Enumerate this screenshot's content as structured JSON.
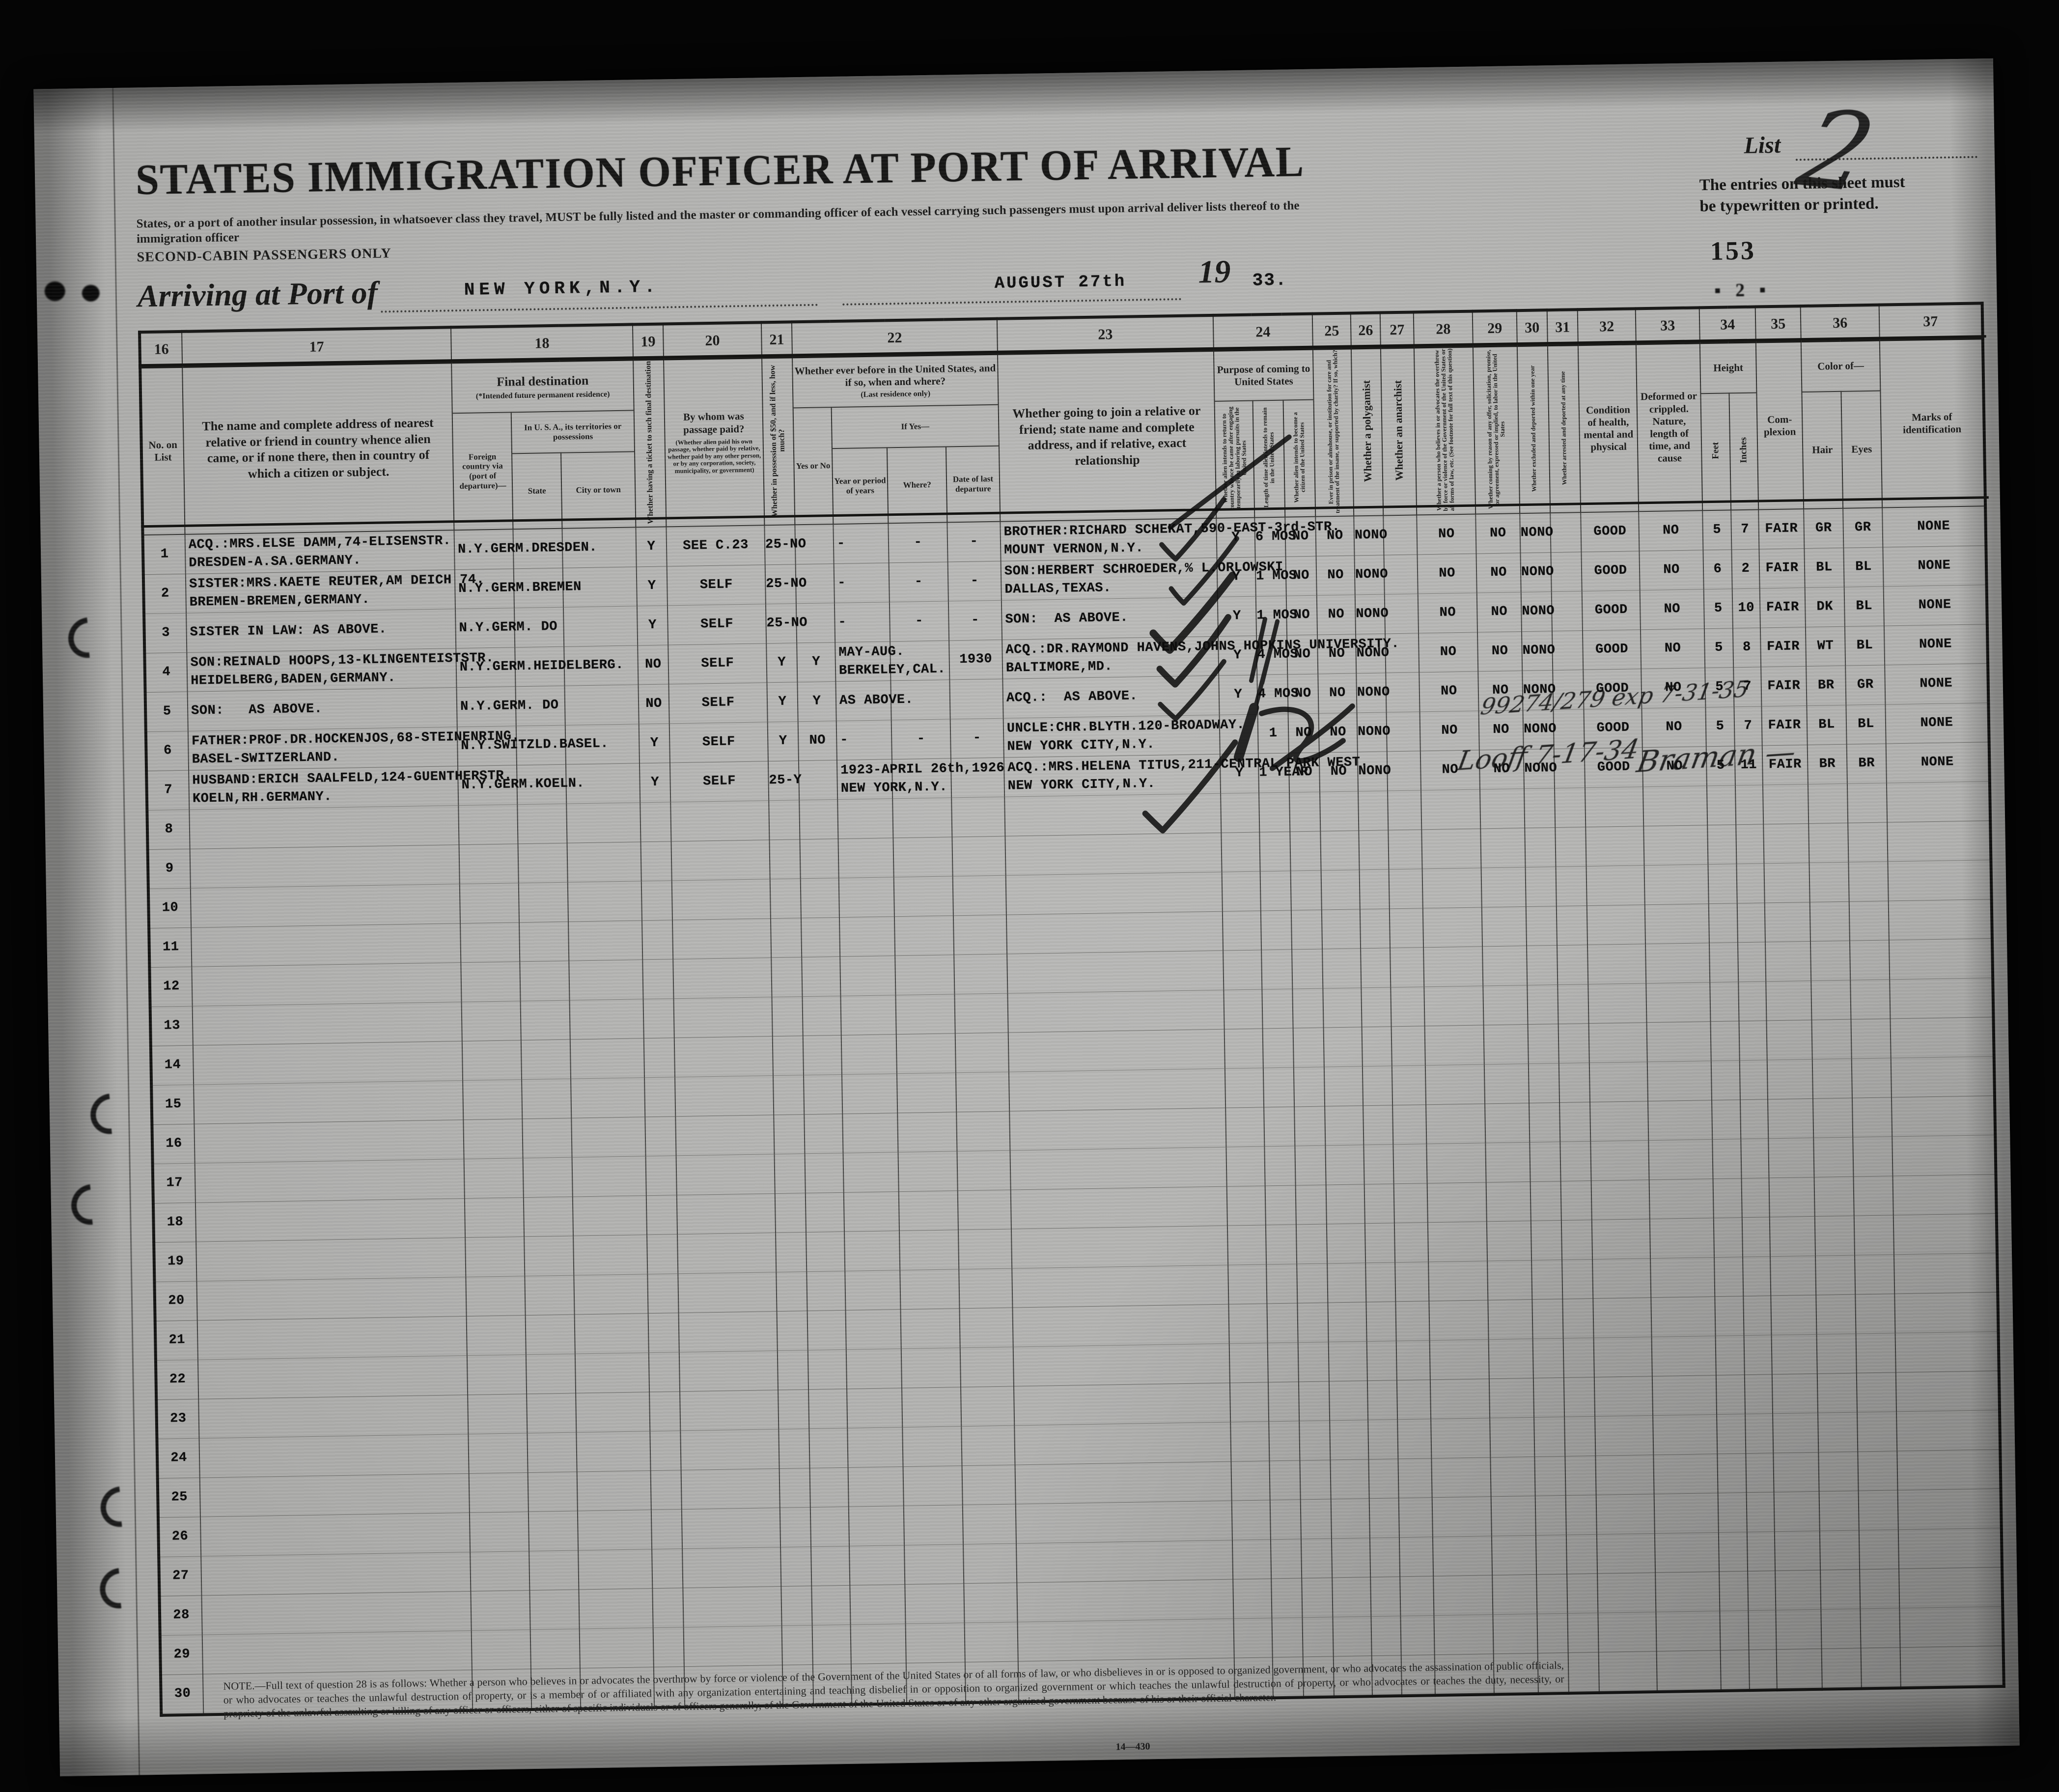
{
  "page": {
    "list_label": "List",
    "list_number_handwritten": "2",
    "typed_note": "The entries on this sheet must be typewritten or printed.",
    "page_number": "153",
    "stamp_marks": "▪ 2 ▪"
  },
  "header": {
    "title": "STATES IMMIGRATION OFFICER AT PORT OF ARRIVAL",
    "subtitle": "States, or a port of another insular possession, in whatsoever class they travel, MUST be fully listed and the master or commanding officer of each vessel carrying such passengers must upon arrival deliver lists thereof to the immigration officer",
    "second_cabin": "SECOND-CABIN PASSENGERS ONLY",
    "arriving_label": "Arriving at Port of",
    "port": "NEW YORK,N.Y.",
    "date": "AUGUST 27th",
    "year_printed": "19",
    "year_typed": "33."
  },
  "table": {
    "column_numbers": [
      "16",
      "17",
      "18",
      "19",
      "20",
      "21",
      "22",
      "23",
      "24",
      "25",
      "26",
      "27",
      "28",
      "29",
      "30",
      "31",
      "32",
      "33",
      "34",
      "35",
      "36",
      "37"
    ],
    "headers": {
      "no_on_list": "No. on List",
      "nearest_relative": "The name and complete address of nearest relative or friend in country whence alien came, or if none there, then in country of which a citizen or subject.",
      "final_destination": "Final destination",
      "final_destination_note": "(*Intended future permanent residence)",
      "foreign_country": "Foreign country via (port of departure)—",
      "in_usa": "In U. S. A., its territories or possessions",
      "state": "State",
      "city": "City or town",
      "ticket": "Whether having a ticket to such final destination",
      "passage": "By whom was passage paid?",
      "passage_note": "(Whether alien paid his own passage, whether paid by relative, whether paid by any other person, or by any corporation, society, municipality, or government)",
      "fifty": "Whether in possession of $50, and if less, how much?",
      "ever_before": "Whether ever before in the United States, and if so, when and where?",
      "ever_before_note": "(Last residence only)",
      "yes_no": "Yes or No",
      "if_yes": "If Yes—",
      "year_period": "Year or period of years",
      "where": "Where?",
      "date_last": "Date of last departure",
      "join_relative": "Whether going to join a relative or friend; state name and complete address, and if relative, exact relationship",
      "purpose": "Purpose of coming to United States",
      "purpose_return": "Whether alien intends to return to country whence he came after engaging temporarily in laboring pursuits in the United States",
      "purpose_length": "Length of time alien intends to remain in the United States",
      "purpose_citizen": "Whether alien intends to become a citizen of the United States",
      "prison": "Ever in prison or almshouse, or institution for care and treatment of the insane, or supported by charity? If so, which?",
      "polygamist": "Whether a polygamist",
      "anarchist": "Whether an anarchist",
      "overthrow": "Whether a person who believes in or advocates the overthrow by force or violence of the Government of the United States or all forms of law, etc. (See footnote for full text of this question)",
      "labor_offer": "Whether coming by reason of any offer, solicitation, promise, or agreement, expressed or implied, to labor in the United States",
      "excluded": "Whether excluded and deported within one year",
      "arrested": "Whether arrested and deported at any time",
      "health": "Condition of health, mental and physical",
      "deformed": "Deformed or crippled. Nature, length of time, and cause",
      "height": "Height",
      "feet": "Feet",
      "inches": "Inches",
      "complexion": "Com-plexion",
      "color_of": "Color of—",
      "hair": "Hair",
      "eyes": "Eyes",
      "marks": "Marks of identification"
    },
    "rows": [
      {
        "no": "1",
        "name": "ACQ.:MRS.ELSE DAMM,74-ELISENSTR.\nDRESDEN-A.SA.GERMANY.",
        "dest": "N.Y.GERM.DRESDEN.",
        "ticket": "Y",
        "paid": "SEE C.23",
        "money": "25-NO",
        "yes": "",
        "year": "-",
        "where": "-",
        "date": "-",
        "join": "BROTHER:RICHARD SCHEKAT,590-EAST-3rd-STR.\nMOUNT VERNON,N.Y.",
        "ret": "Y",
        "len": "6 MOS",
        "cit": "NO",
        "prison": "NO",
        "c2627": "NONO",
        "c28": "NO",
        "c29": "NO",
        "c3031": "NONO",
        "health": "GOOD",
        "deform": "NO",
        "ft": "5",
        "inch": "7",
        "compl": "FAIR",
        "hair": "GR",
        "eyes": "GR",
        "marks": "NONE"
      },
      {
        "no": "2",
        "name": "SISTER:MRS.KAETE REUTER,AM DEICH 74.\nBREMEN-BREMEN,GERMANY.",
        "dest": "N.Y.GERM.BREMEN",
        "ticket": "Y",
        "paid": "SELF",
        "money": "25-NO",
        "yes": "",
        "year": "-",
        "where": "-",
        "date": "-",
        "join": "SON:HERBERT SCHROEDER,% L.ORLOWSKI\nDALLAS,TEXAS.",
        "ret": "Y",
        "len": "1 MOS",
        "cit": "NO",
        "prison": "NO",
        "c2627": "NONO",
        "c28": "NO",
        "c29": "NO",
        "c3031": "NONO",
        "health": "GOOD",
        "deform": "NO",
        "ft": "6",
        "inch": "2",
        "compl": "FAIR",
        "hair": "BL",
        "eyes": "BL",
        "marks": "NONE"
      },
      {
        "no": "3",
        "name": "SISTER IN LAW: AS ABOVE.",
        "dest": "N.Y.GERM. DO",
        "ticket": "Y",
        "paid": "SELF",
        "money": "25-NO",
        "yes": "",
        "year": "-",
        "where": "-",
        "date": "-",
        "join": "SON:  AS ABOVE.",
        "ret": "Y",
        "len": "1 MOS",
        "cit": "NO",
        "prison": "NO",
        "c2627": "NONO",
        "c28": "NO",
        "c29": "NO",
        "c3031": "NONO",
        "health": "GOOD",
        "deform": "NO",
        "ft": "5",
        "inch": "10",
        "compl": "FAIR",
        "hair": "DK",
        "eyes": "BL",
        "marks": "NONE"
      },
      {
        "no": "4",
        "name": "SON:REINALD HOOPS,13-KLINGENTEISTSTR.\nHEIDELBERG,BADEN,GERMANY.",
        "dest": "N.Y.GERM.HEIDELBERG.",
        "ticket": "NO",
        "paid": "SELF",
        "money": "Y",
        "yes": "Y",
        "year": "MAY-AUG.\nBERKELEY,CAL.",
        "where": "",
        "date": "1930",
        "join": "ACQ.:DR.RAYMOND HAVENS,JOHNS HOPKINS UNIVERSITY.\nBALTIMORE,MD.",
        "ret": "Y",
        "len": "4 MOS",
        "cit": "NO",
        "prison": "NO",
        "c2627": "NONO",
        "c28": "NO",
        "c29": "NO",
        "c3031": "NONO",
        "health": "GOOD",
        "deform": "NO",
        "ft": "5",
        "inch": "8",
        "compl": "FAIR",
        "hair": "WT",
        "eyes": "BL",
        "marks": "NONE"
      },
      {
        "no": "5",
        "name": "SON:   AS ABOVE.",
        "dest": "N.Y.GERM. DO",
        "ticket": "NO",
        "paid": "SELF",
        "money": "Y",
        "yes": "Y",
        "year": "AS ABOVE.",
        "where": "",
        "date": "",
        "join": "ACQ.:  AS ABOVE.",
        "ret": "Y",
        "len": "4 MOS",
        "cit": "NO",
        "prison": "NO",
        "c2627": "NONO",
        "c28": "NO",
        "c29": "NO",
        "c3031": "NONO",
        "health": "GOOD",
        "deform": "NO",
        "ft": "5",
        "inch": "7",
        "compl": "FAIR",
        "hair": "BR",
        "eyes": "GR",
        "marks": "NONE"
      },
      {
        "no": "6",
        "name": "FATHER:PROF.DR.HOCKENJOS,68-STEINENRING.\nBASEL-SWITZERLAND.",
        "dest": "N.Y.SWITZLD.BASEL.",
        "ticket": "Y",
        "paid": "SELF",
        "money": "Y",
        "yes": "NO",
        "year": "-",
        "where": "-",
        "date": "-",
        "join": "UNCLE:CHR.BLYTH.120-BROADWAY.\nNEW YORK CITY,N.Y.",
        "ret": "",
        "len": "1",
        "cit": "NO",
        "prison": "NO",
        "c2627": "NONO",
        "c28": "NO",
        "c29": "NO",
        "c3031": "NONO",
        "health": "GOOD",
        "deform": "NO",
        "ft": "5",
        "inch": "7",
        "compl": "FAIR",
        "hair": "BL",
        "eyes": "BL",
        "marks": "NONE"
      },
      {
        "no": "7",
        "name": "HUSBAND:ERICH SAALFELD,124-GUENTHERSTR.\nKOELN,RH.GERMANY.",
        "dest": "N.Y.GERM.KOELN.",
        "ticket": "Y",
        "paid": "SELF",
        "money": "25-Y",
        "yes": "",
        "year": "1923-APRIL 26th,1926\nNEW YORK,N.Y.",
        "where": "",
        "date": "",
        "join": "ACQ.:MRS.HELENA TITUS,211-CENTRAL PARK WEST.\nNEW YORK CITY,N.Y.",
        "ret": "Y",
        "len": "1 YEAR",
        "cit": "NO",
        "prison": "NO",
        "c2627": "NONO",
        "c28": "NO",
        "c29": "NO",
        "c3031": "NONO",
        "health": "GOOD",
        "deform": "NO",
        "ft": "5",
        "inch": "11",
        "compl": "FAIR",
        "hair": "BR",
        "eyes": "BR",
        "marks": "NONE"
      },
      {
        "no": "8"
      },
      {
        "no": "9"
      },
      {
        "no": "10"
      },
      {
        "no": "11"
      },
      {
        "no": "12"
      },
      {
        "no": "13"
      },
      {
        "no": "14"
      },
      {
        "no": "15"
      },
      {
        "no": "16"
      },
      {
        "no": "17"
      },
      {
        "no": "18"
      },
      {
        "no": "19"
      },
      {
        "no": "20"
      },
      {
        "no": "21"
      },
      {
        "no": "22"
      },
      {
        "no": "23"
      },
      {
        "no": "24"
      },
      {
        "no": "25"
      },
      {
        "no": "26"
      },
      {
        "no": "27"
      },
      {
        "no": "28"
      },
      {
        "no": "29"
      },
      {
        "no": "30"
      }
    ]
  },
  "annotations": {
    "exp_note": "99274/279 exp 7-31-35",
    "date_note": "Looff 7-17-34",
    "signature": "Braman —"
  },
  "footer": {
    "note": "NOTE.—Full text of question 28 is as follows: Whether a person who believes in or advocates the overthrow by force or violence of the Government of the United States or of all forms of law, or who disbelieves in or is opposed to organized government, or who advocates the assassination of public officials, or who advocates or teaches the unlawful destruction of property, or is a member of or affiliated with any organization entertaining and teaching disbelief in or opposition to organized government or which teaches the unlawful destruction of property, or who advocates or teaches the duty, necessity, or propriety of the unlawful assaulting or killing of any officer or officers, either of specific individuals or of officers generally, of the Government of the United States or of any other organized government because of his or their official character.",
    "form_number": "14—430"
  }
}
